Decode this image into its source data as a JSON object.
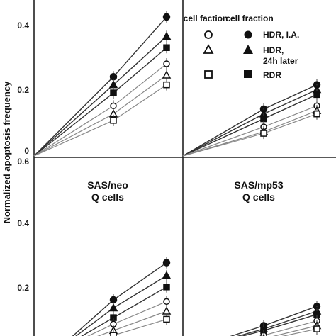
{
  "chart_data": {
    "type": "line",
    "ylabel": "Normalized apoptosis frequency",
    "y_ticks": [
      "0",
      "0.2",
      "0.4",
      "0.6"
    ],
    "ylim": [
      0,
      0.6
    ],
    "x": [
      0,
      1,
      2
    ],
    "legend": {
      "column_headers": [
        "cell faction",
        "cell fraction"
      ],
      "entries": [
        "HDR, I.A.",
        "HDR, 24h later",
        "RDR"
      ]
    },
    "panels": [
      {
        "title_lines": [],
        "series": [
          {
            "filled": true,
            "marker": "circle",
            "values": [
              0,
              0.245,
              0.43
            ]
          },
          {
            "filled": true,
            "marker": "triangle",
            "values": [
              0,
              0.22,
              0.37
            ]
          },
          {
            "filled": true,
            "marker": "square",
            "values": [
              0,
              0.195,
              0.335
            ]
          },
          {
            "filled": false,
            "marker": "circle",
            "values": [
              0,
              0.155,
              0.285
            ]
          },
          {
            "filled": false,
            "marker": "triangle",
            "values": [
              0,
              0.13,
              0.25
            ]
          },
          {
            "filled": false,
            "marker": "square",
            "values": [
              0,
              0.11,
              0.22
            ]
          }
        ]
      },
      {
        "title_lines": [],
        "series": [
          {
            "filled": true,
            "marker": "circle",
            "values": [
              0,
              0.145,
              0.22
            ]
          },
          {
            "filled": true,
            "marker": "triangle",
            "values": [
              0,
              0.13,
              0.205
            ]
          },
          {
            "filled": true,
            "marker": "square",
            "values": [
              0,
              0.115,
              0.19
            ]
          },
          {
            "filled": false,
            "marker": "circle",
            "values": [
              0,
              0.09,
              0.155
            ]
          },
          {
            "filled": false,
            "marker": "triangle",
            "values": [
              0,
              0.075,
              0.14
            ]
          },
          {
            "filled": false,
            "marker": "square",
            "values": [
              0,
              0.07,
              0.13
            ]
          }
        ]
      },
      {
        "title_lines": [
          "SAS/neo",
          "Q cells"
        ],
        "series": [
          {
            "filled": true,
            "marker": "circle",
            "values": [
              0,
              0.16,
              0.275
            ]
          },
          {
            "filled": true,
            "marker": "triangle",
            "values": [
              0,
              0.135,
              0.235
            ]
          },
          {
            "filled": true,
            "marker": "square",
            "values": [
              0,
              0.105,
              0.2
            ]
          },
          {
            "filled": false,
            "marker": "circle",
            "values": [
              0,
              0.085,
              0.155
            ]
          },
          {
            "filled": false,
            "marker": "triangle",
            "values": [
              0,
              0.065,
              0.125
            ]
          },
          {
            "filled": false,
            "marker": "square",
            "values": [
              0,
              0.05,
              0.1
            ]
          }
        ]
      },
      {
        "title_lines": [
          "SAS/mp53",
          "Q cells"
        ],
        "series": [
          {
            "filled": true,
            "marker": "circle",
            "values": [
              0,
              0.08,
              0.14
            ]
          },
          {
            "filled": true,
            "marker": "triangle",
            "values": [
              0,
              0.07,
              0.125
            ]
          },
          {
            "filled": true,
            "marker": "square",
            "values": [
              0,
              0.065,
              0.115
            ]
          },
          {
            "filled": false,
            "marker": "circle",
            "values": [
              0,
              0.05,
              0.095
            ]
          },
          {
            "filled": false,
            "marker": "triangle",
            "values": [
              0,
              0.04,
              0.08
            ]
          },
          {
            "filled": false,
            "marker": "square",
            "values": [
              0,
              0.035,
              0.07
            ]
          }
        ]
      }
    ]
  }
}
